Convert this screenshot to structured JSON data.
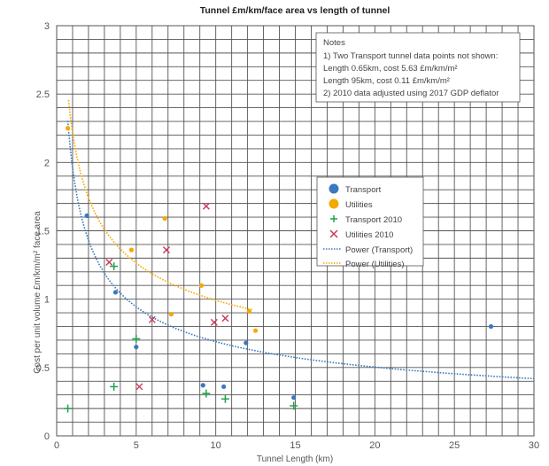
{
  "chart_data": {
    "type": "scatter",
    "title": "Tunnel £m/km/face area vs length of tunnel",
    "xlabel": "Tunnel Length (km)",
    "ylabel": "Cost per unit volume £m/km/m² face area",
    "xlim": [
      0,
      30
    ],
    "ylim": [
      0,
      3
    ],
    "x_ticks": [
      0,
      5,
      10,
      15,
      20,
      25,
      30
    ],
    "y_ticks": [
      0,
      0.5,
      1,
      1.5,
      2,
      2.5,
      3
    ],
    "grid": {
      "on": true,
      "x_step": 1,
      "y_step": 0.1
    },
    "legend_position": "center-right",
    "series": [
      {
        "name": "Transport",
        "marker": "circle",
        "color": "#3a78bf",
        "points": [
          [
            1.9,
            1.61
          ],
          [
            3.7,
            1.05
          ],
          [
            5.0,
            0.65
          ],
          [
            9.2,
            0.37
          ],
          [
            10.5,
            0.36
          ],
          [
            11.9,
            0.68
          ],
          [
            14.9,
            0.28
          ],
          [
            27.3,
            0.8
          ]
        ]
      },
      {
        "name": "Utilities",
        "marker": "circle",
        "color": "#f5a800",
        "points": [
          [
            0.7,
            2.25
          ],
          [
            4.7,
            1.36
          ],
          [
            6.8,
            1.59
          ],
          [
            7.2,
            0.89
          ],
          [
            9.1,
            1.1
          ],
          [
            12.1,
            0.91
          ],
          [
            12.5,
            0.77
          ]
        ]
      },
      {
        "name": "Transport 2010",
        "marker": "plus",
        "color": "#1fa34a",
        "points": [
          [
            0.7,
            0.2
          ],
          [
            3.6,
            1.24
          ],
          [
            3.6,
            0.36
          ],
          [
            5.0,
            0.71
          ],
          [
            9.4,
            0.31
          ],
          [
            10.6,
            0.27
          ],
          [
            14.9,
            0.22
          ]
        ]
      },
      {
        "name": "Utilities 2010",
        "marker": "x",
        "color": "#c8385a",
        "points": [
          [
            3.3,
            1.27
          ],
          [
            5.2,
            0.36
          ],
          [
            6.0,
            0.85
          ],
          [
            6.9,
            1.36
          ],
          [
            9.4,
            1.68
          ],
          [
            9.9,
            0.83
          ],
          [
            10.6,
            0.86
          ]
        ]
      },
      {
        "name": "Power (Transport)",
        "type": "trendline",
        "style": "dotted",
        "color": "#3a78bf",
        "fit": {
          "a": 1.96,
          "b": -0.454,
          "x_range": [
            0.7,
            30
          ]
        }
      },
      {
        "name": "Power (Utilities)",
        "type": "trendline",
        "style": "dotted",
        "color": "#f5a800",
        "fit": {
          "a": 2.22,
          "b": -0.35,
          "x_range": [
            0.75,
            12.3
          ]
        }
      }
    ],
    "annotations": {
      "notes_title": "Notes",
      "notes_lines": [
        "1)  Two Transport tunnel data points not shown:",
        "Length 0.65km, cost 5.63 £m/km/m²",
        "Length 95km, cost 0.11 £m/km/m²",
        "2)  2010 data adjusted using 2017 GDP deflator"
      ]
    }
  }
}
